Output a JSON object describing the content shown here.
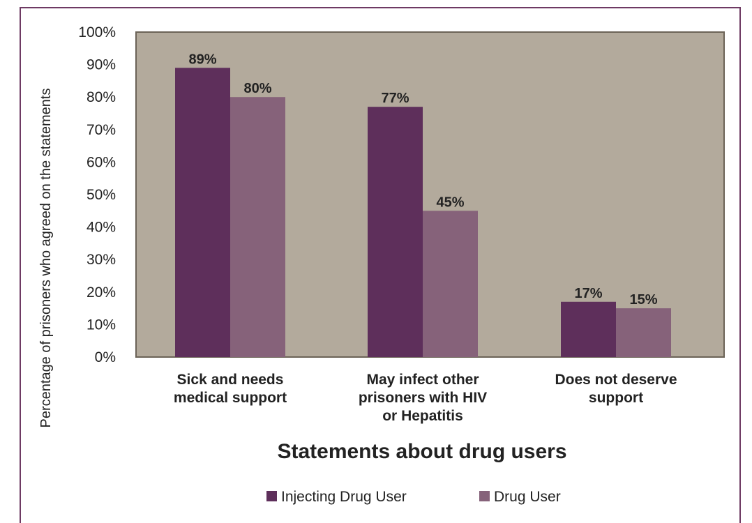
{
  "chart_data": {
    "type": "bar",
    "title": "",
    "xlabel": "Statements about drug users",
    "ylabel": "Percentage of prisoners who agreed on the statements",
    "categories": [
      [
        "Sick and needs",
        "medical support"
      ],
      [
        "May infect other",
        "prisoners with HIV",
        "or Hepatitis"
      ],
      [
        "Does not deserve",
        "support"
      ]
    ],
    "series": [
      {
        "name": "Injecting Drug User",
        "values": [
          89,
          77,
          17
        ],
        "labels": [
          "89%",
          "77%",
          "17%"
        ],
        "color": "#5e2f5b"
      },
      {
        "name": "Drug User",
        "values": [
          80,
          45,
          15
        ],
        "labels": [
          "80%",
          "45%",
          "15%"
        ],
        "color": "#86627a"
      }
    ],
    "yticks": [
      "0%",
      "10%",
      "20%",
      "30%",
      "40%",
      "50%",
      "60%",
      "70%",
      "80%",
      "90%",
      "100%"
    ],
    "ylim": [
      0,
      100
    ],
    "grid": false,
    "legend": "bottom",
    "plot_background": "#b3aa9c",
    "frame_color": "#6e3a63"
  }
}
